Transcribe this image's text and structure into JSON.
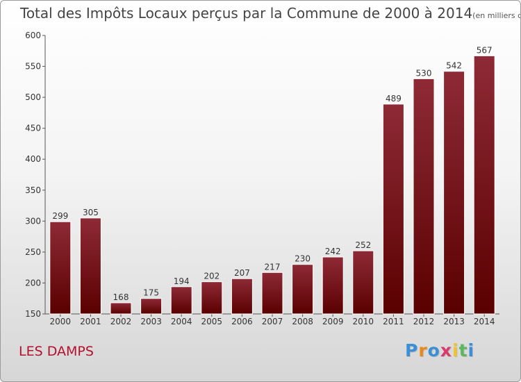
{
  "title": "Total des Impôts Locaux perçus par la Commune de 2000 à 2014",
  "title_unit": "(en milliers d'€)",
  "commune": "LES DAMPS",
  "logo": {
    "text": "Proxiti",
    "letter_colors": [
      "#3a8fd6",
      "#e8891c",
      "#3a8fd6",
      "#d93a6e",
      "#f2c12e",
      "#5cb85c",
      "#3a8fd6"
    ]
  },
  "colors": {
    "bar_light": "#8e2a36",
    "bar_dark": "#5a0000",
    "text": "#333333",
    "commune": "#b2102e"
  },
  "chart_data": {
    "type": "bar",
    "categories": [
      "2000",
      "2001",
      "2002",
      "2003",
      "2004",
      "2005",
      "2006",
      "2007",
      "2008",
      "2009",
      "2010",
      "2011",
      "2012",
      "2013",
      "2014"
    ],
    "values": [
      299,
      305,
      168,
      175,
      194,
      202,
      207,
      217,
      230,
      242,
      252,
      489,
      530,
      542,
      567
    ],
    "title": "Total des Impôts Locaux perçus par la Commune de 2000 à 2014",
    "ylim": [
      150,
      600
    ],
    "yticks": [
      150,
      200,
      250,
      300,
      350,
      400,
      450,
      500,
      550,
      600
    ],
    "grid": false,
    "legend": "none"
  }
}
